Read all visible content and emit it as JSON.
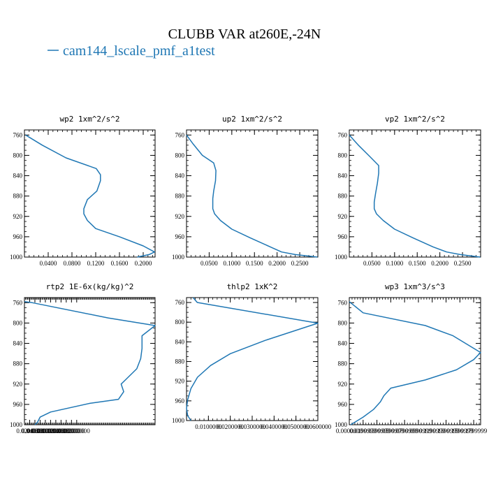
{
  "figure": {
    "title": "CLUBB VAR at260E,-24N",
    "legend_label": "cam144_lscale_pmf_a1test",
    "series_color": "#1f77b4"
  },
  "chart_data": [
    {
      "type": "line",
      "title": "wp2   1xm^2/s^2",
      "xlim": [
        0.0,
        0.22
      ],
      "ylim": [
        1000,
        750
      ],
      "xticks": [
        "0.0400",
        "0.0800",
        "0.1200",
        "0.1600",
        "0.2000"
      ],
      "xtick_values": [
        0.04,
        0.08,
        0.12,
        0.16,
        0.2
      ],
      "yticks": [
        760,
        800,
        840,
        880,
        920,
        960,
        1000
      ],
      "series": [
        {
          "x": [
            0.002,
            0.03,
            0.07,
            0.121,
            0.128,
            0.128,
            0.122,
            0.106,
            0.1,
            0.1,
            0.106,
            0.12,
            0.16,
            0.2,
            0.219,
            0.21,
            0.19
          ],
          "y": [
            760,
            780,
            805,
            826,
            838,
            850,
            870,
            887,
            905,
            915,
            928,
            944,
            960,
            978,
            990,
            995,
            1000
          ]
        }
      ]
    },
    {
      "type": "line",
      "title": "up2   1xm^2/s^2",
      "xlim": [
        0.0,
        0.29
      ],
      "ylim": [
        1000,
        750
      ],
      "xticks": [
        "0.0500",
        "0.1000",
        "0.1500",
        "0.2000",
        "0.2500"
      ],
      "xtick_values": [
        0.05,
        0.1,
        0.15,
        0.2,
        0.25
      ],
      "yticks": [
        760,
        800,
        840,
        880,
        920,
        960,
        1000
      ],
      "series": [
        {
          "x": [
            0.0,
            0.015,
            0.035,
            0.06,
            0.065,
            0.064,
            0.06,
            0.058,
            0.058,
            0.062,
            0.075,
            0.1,
            0.14,
            0.185,
            0.21,
            0.24,
            0.289
          ],
          "y": [
            760,
            778,
            800,
            815,
            830,
            850,
            870,
            885,
            905,
            915,
            928,
            945,
            962,
            980,
            990,
            995,
            1000
          ]
        }
      ]
    },
    {
      "type": "line",
      "title": "vp2   1xm^2/s^2",
      "xlim": [
        0.0,
        0.29
      ],
      "ylim": [
        1000,
        750
      ],
      "xticks": [
        "0.0500",
        "0.1000",
        "0.1500",
        "0.2000",
        "0.2500"
      ],
      "xtick_values": [
        0.05,
        0.1,
        0.15,
        0.2,
        0.25
      ],
      "yticks": [
        760,
        800,
        840,
        880,
        920,
        960,
        1000
      ],
      "series": [
        {
          "x": [
            0.0,
            0.02,
            0.045,
            0.065,
            0.065,
            0.062,
            0.058,
            0.055,
            0.055,
            0.06,
            0.075,
            0.1,
            0.14,
            0.185,
            0.215,
            0.245,
            0.289
          ],
          "y": [
            760,
            780,
            802,
            820,
            835,
            855,
            875,
            892,
            905,
            915,
            928,
            945,
            962,
            980,
            990,
            995,
            1000
          ]
        }
      ]
    },
    {
      "type": "line",
      "title": "rtp2   1E-6x(kg/kg)^2",
      "xlim": [
        0.0,
        0.5
      ],
      "ylim": [
        1000,
        750
      ],
      "xticks": [
        "0.0200000",
        "0.0400000",
        "0.0600000",
        "0.0800000",
        "0.1000000",
        "0.1200000",
        "0.1400000",
        "0.1600000",
        "0.1800000",
        "0.2000000"
      ],
      "xtick_values": [
        0.02,
        0.04,
        0.06,
        0.08,
        0.1,
        0.12,
        0.14,
        0.16,
        0.18,
        0.2
      ],
      "yticks": [
        760,
        800,
        840,
        880,
        920,
        960,
        1000
      ],
      "series": [
        {
          "x": [
            0.0,
            0.03,
            0.32,
            0.5,
            0.45,
            0.45,
            0.445,
            0.43,
            0.39,
            0.37,
            0.38,
            0.36,
            0.25,
            0.1,
            0.06,
            0.05,
            0.04
          ],
          "y": [
            758,
            760,
            790,
            805,
            825,
            850,
            870,
            890,
            910,
            920,
            935,
            950,
            958,
            975,
            985,
            995,
            1000
          ]
        }
      ]
    },
    {
      "type": "line",
      "title": "thlp2   1xK^2",
      "xlim": [
        0.0,
        0.06
      ],
      "ylim": [
        1000,
        750
      ],
      "xticks": [
        "0.0100000",
        "0.0200000",
        "0.0300000",
        "0.0400000",
        "0.0500000",
        "0.0600000"
      ],
      "xtick_values": [
        0.01,
        0.02,
        0.03,
        0.04,
        0.05,
        0.06
      ],
      "yticks": [
        760,
        800,
        840,
        880,
        920,
        960,
        1000
      ],
      "series": [
        {
          "x": [
            0.003,
            0.0049,
            0.06,
            0.036,
            0.02,
            0.011,
            0.005,
            0.002,
            0.0005,
            0.0,
            0.0005,
            0.002
          ],
          "y": [
            750,
            760,
            802,
            837,
            864,
            888,
            912,
            935,
            958,
            975,
            990,
            1000
          ]
        }
      ]
    },
    {
      "type": "line",
      "title": "wp3   1xm^3/s^3",
      "xlim": [
        0.0,
        0.19
      ],
      "ylim": [
        1000,
        750
      ],
      "xticks": [
        "0.0000000",
        "0.0199999",
        "0.0399999",
        "0.0599999",
        "0.0799999",
        "0.0999999",
        "0.1199999",
        "0.1399999",
        "0.1599999",
        "0.1799999"
      ],
      "xtick_values": [
        0.0,
        0.02,
        0.04,
        0.06,
        0.08,
        0.1,
        0.12,
        0.14,
        0.16,
        0.18
      ],
      "yticks": [
        760,
        800,
        840,
        880,
        920,
        960,
        1000
      ],
      "series": [
        {
          "x": [
            0.0,
            0.02,
            0.11,
            0.15,
            0.19,
            0.18,
            0.155,
            0.11,
            0.06,
            0.05,
            0.045,
            0.035,
            0.02,
            0.002
          ],
          "y": [
            758,
            780,
            805,
            825,
            858,
            872,
            892,
            912,
            928,
            943,
            955,
            970,
            985,
            1000
          ]
        }
      ]
    }
  ]
}
